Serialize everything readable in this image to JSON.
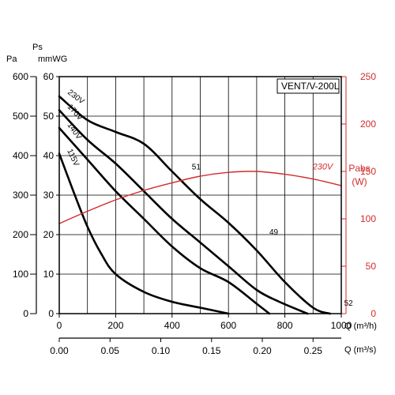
{
  "chart_data": {
    "type": "line",
    "title": "VENT/V-200L",
    "pressure_axis": {
      "unit_label_top": "Ps",
      "label_pa": "Pa",
      "label_mmwg": "mmWG",
      "pa_range": [
        0,
        600
      ],
      "pa_ticks": [
        "0",
        "100",
        "200",
        "300",
        "400",
        "500",
        "600"
      ],
      "mmwg_ticks": [
        "0",
        "10",
        "20",
        "30",
        "40",
        "50",
        "60"
      ]
    },
    "power_axis": {
      "label_line1": "Pabs",
      "label_line2": "(W)",
      "range": [
        0,
        250
      ],
      "ticks": [
        "0",
        "50",
        "100",
        "150",
        "200",
        "250"
      ],
      "color": "#d42a2a"
    },
    "flow_axis_m3h": {
      "label": "Q (m³/h)",
      "range": [
        0,
        1000
      ],
      "ticks": [
        "0",
        "200",
        "400",
        "600",
        "800",
        "1000"
      ]
    },
    "flow_axis_m3s": {
      "label": "Q (m³/s)",
      "range": [
        0,
        0.2778
      ],
      "ticks": [
        "0.00",
        "0.05",
        "0.10",
        "0.15",
        "0.20",
        "0.25"
      ]
    },
    "grid": true,
    "series": [
      {
        "name": "230V",
        "color": "#000000",
        "x": [
          0,
          100,
          200,
          300,
          400,
          500,
          600,
          700,
          800,
          900,
          960
        ],
        "y": [
          550,
          490,
          460,
          430,
          360,
          290,
          230,
          160,
          80,
          15,
          0
        ]
      },
      {
        "name": "170V",
        "color": "#000000",
        "x": [
          0,
          100,
          200,
          300,
          400,
          500,
          600,
          700,
          780,
          880
        ],
        "y": [
          515,
          440,
          380,
          310,
          240,
          180,
          120,
          60,
          30,
          0
        ]
      },
      {
        "name": "140V",
        "color": "#000000",
        "x": [
          0,
          100,
          200,
          300,
          400,
          500,
          600,
          700,
          745
        ],
        "y": [
          470,
          390,
          310,
          240,
          170,
          115,
          80,
          25,
          0
        ]
      },
      {
        "name": "115V",
        "color": "#000000",
        "x": [
          0,
          50,
          100,
          150,
          200,
          300,
          400,
          500,
          600
        ],
        "y": [
          405,
          310,
          220,
          150,
          100,
          55,
          30,
          15,
          0
        ]
      },
      {
        "name": "230V",
        "axis": "power",
        "color": "#d42a2a",
        "x": [
          0,
          100,
          200,
          300,
          400,
          500,
          600,
          700,
          800,
          900,
          1000
        ],
        "y": [
          95,
          108,
          120,
          130,
          138,
          145,
          149,
          150,
          147,
          142,
          135
        ]
      }
    ],
    "annotations": [
      {
        "text": "51",
        "x": 470,
        "y": 365
      },
      {
        "text": "49",
        "x": 745,
        "y": 200
      },
      {
        "text": "52",
        "x": 1010,
        "y": 20
      }
    ]
  }
}
